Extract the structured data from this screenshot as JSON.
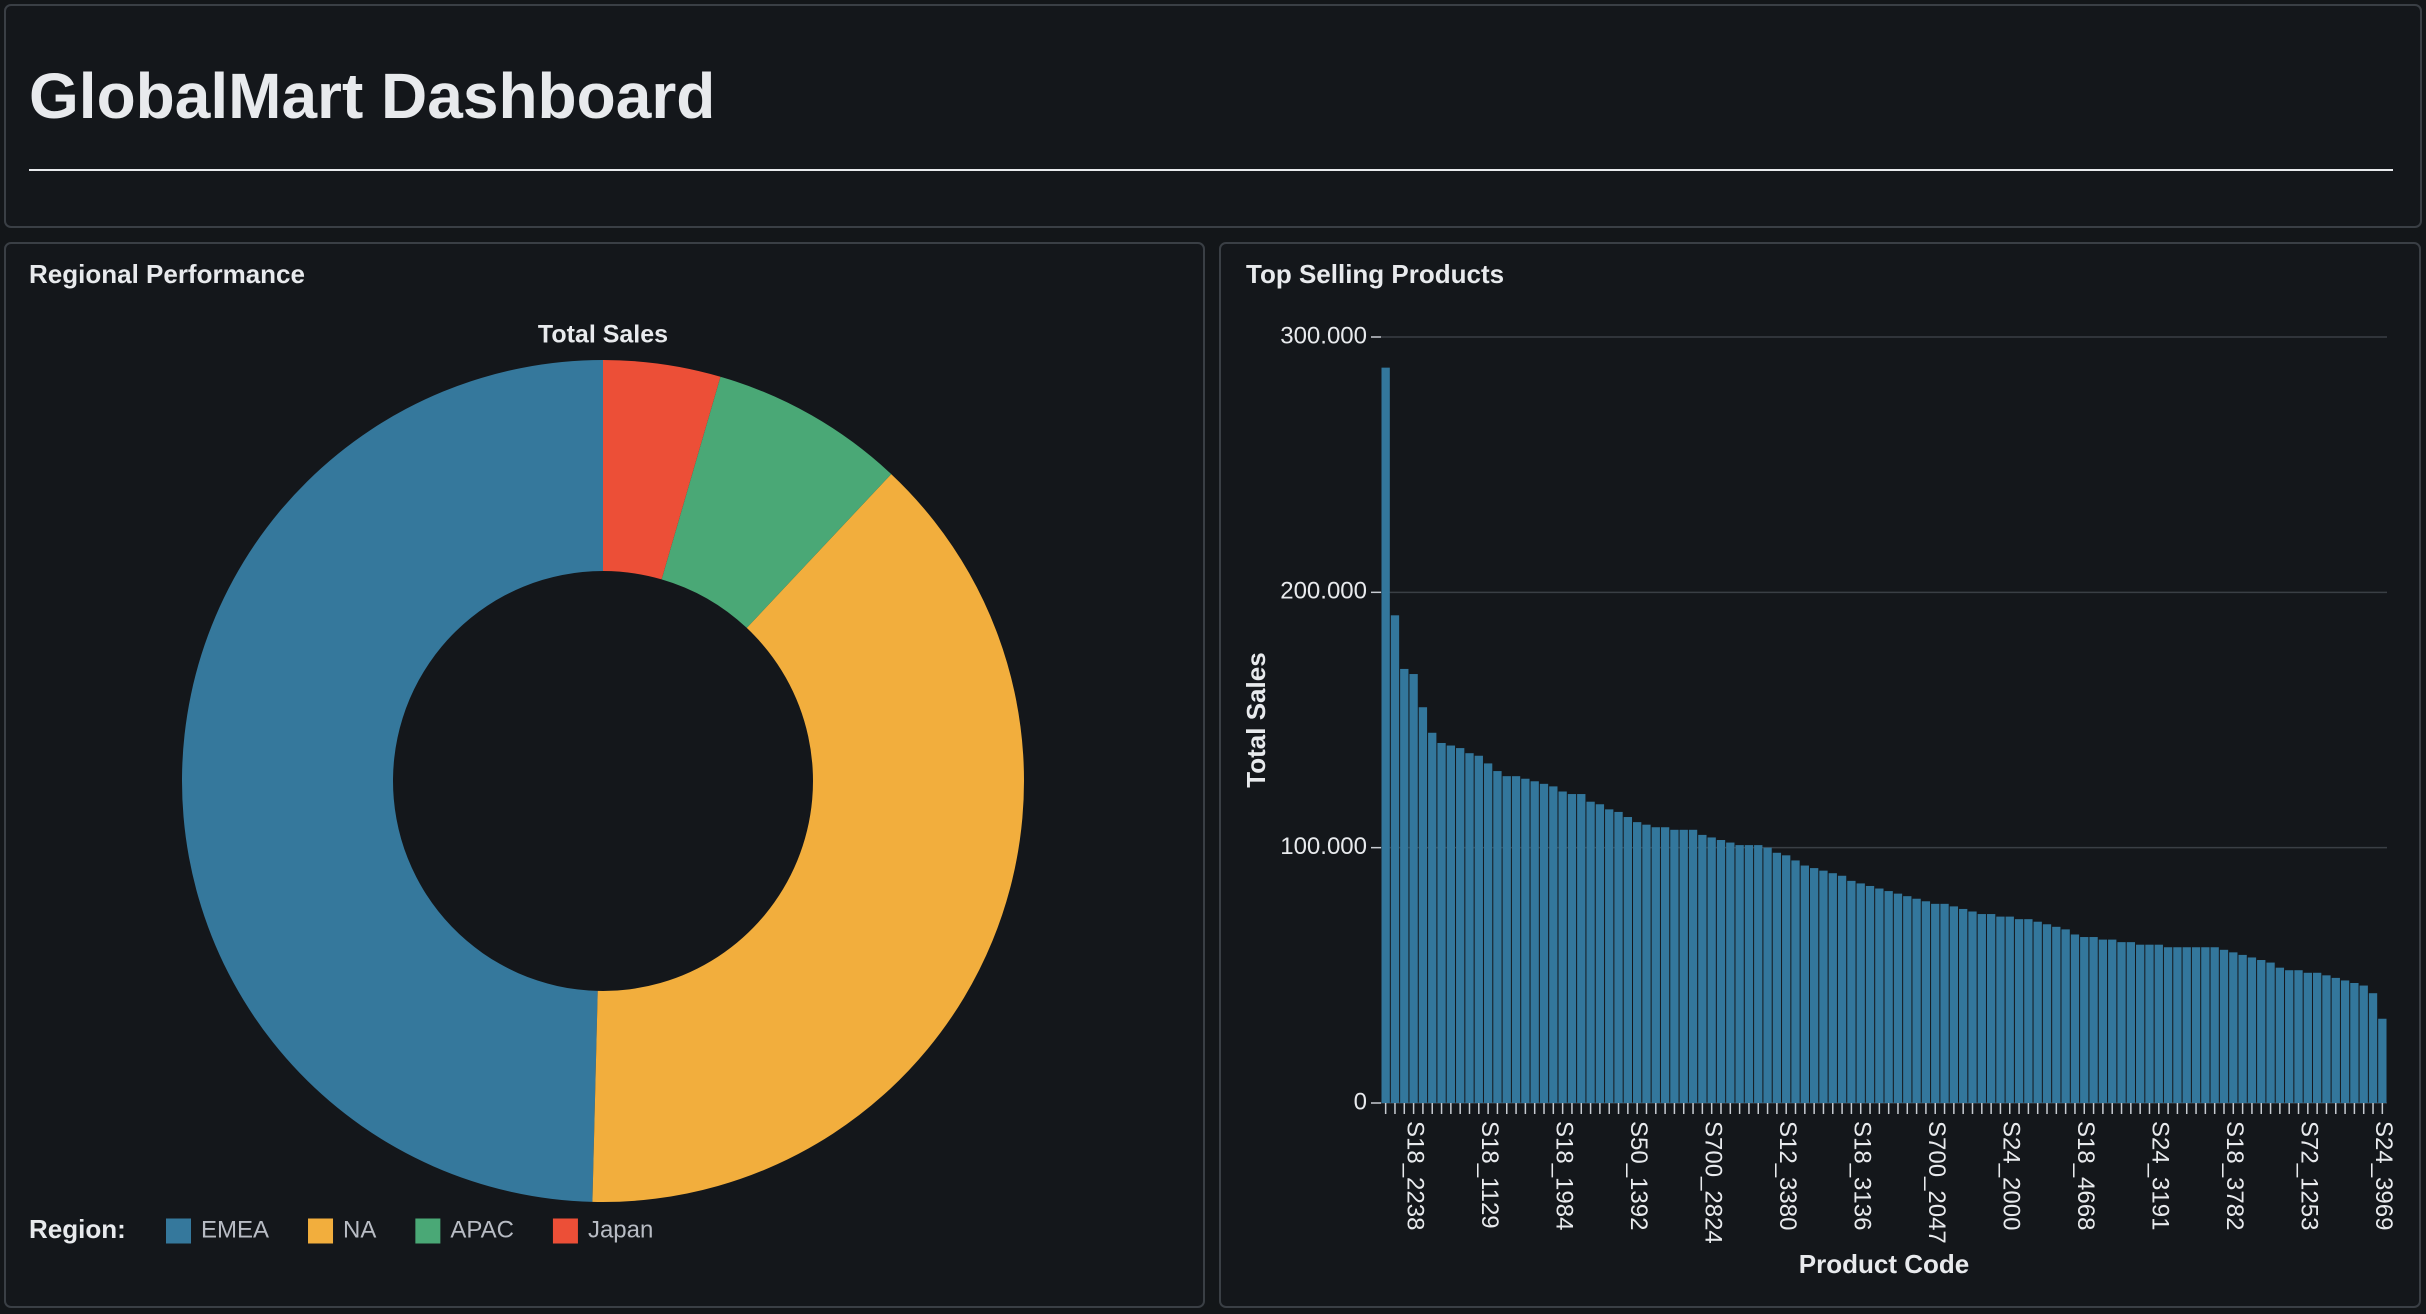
{
  "header": {
    "title": "GlobalMart Dashboard"
  },
  "chart_data": [
    {
      "type": "pie",
      "panel_title": "Regional Performance",
      "title": "Total Sales",
      "legend_title": "Region:",
      "legend": "bottom-left",
      "categories": [
        "EMEA",
        "NA",
        "APAC",
        "Japan"
      ],
      "values": [
        49.6,
        38.4,
        7.5,
        4.5
      ],
      "colors": [
        "#35789c",
        "#f2ae3d",
        "#4aa876",
        "#ec4f37"
      ]
    },
    {
      "type": "bar",
      "panel_title": "Top Selling Products",
      "xlabel": "Product Code",
      "ylabel": "Total Sales",
      "categories": [
        null,
        null,
        null,
        "S18_2238",
        null,
        null,
        null,
        null,
        null,
        null,
        null,
        "S18_1129",
        null,
        null,
        null,
        null,
        null,
        null,
        null,
        "S18_1984",
        null,
        null,
        null,
        null,
        null,
        null,
        null,
        "S50_1392",
        null,
        null,
        null,
        null,
        null,
        null,
        null,
        "S700_2824",
        null,
        null,
        null,
        null,
        null,
        null,
        null,
        "S12_3380",
        null,
        null,
        null,
        null,
        null,
        null,
        null,
        "S18_3136",
        null,
        null,
        null,
        null,
        null,
        null,
        null,
        "S700_2047",
        null,
        null,
        null,
        null,
        null,
        null,
        null,
        "S24_2000",
        null,
        null,
        null,
        null,
        null,
        null,
        null,
        "S18_4668",
        null,
        null,
        null,
        null,
        null,
        null,
        null,
        "S24_3191",
        null,
        null,
        null,
        null,
        null,
        null,
        null,
        "S18_3782",
        null,
        null,
        null,
        null,
        null,
        null,
        null,
        "S72_1253",
        null,
        null,
        null,
        null,
        null,
        null,
        null,
        "S24_3969"
      ],
      "values": [
        288000,
        191000,
        170000,
        168000,
        155000,
        145000,
        141000,
        140000,
        139000,
        137000,
        136000,
        133000,
        130000,
        128000,
        128000,
        127000,
        126000,
        125000,
        124000,
        122000,
        121000,
        121000,
        118000,
        117000,
        115000,
        114000,
        112000,
        110000,
        109000,
        108000,
        108000,
        107000,
        107000,
        107000,
        105000,
        104000,
        103000,
        102000,
        101000,
        101000,
        101000,
        100000,
        98000,
        97000,
        95000,
        93000,
        92000,
        91000,
        90000,
        89000,
        87000,
        86000,
        85000,
        84000,
        83000,
        82000,
        81000,
        80000,
        79000,
        78000,
        78000,
        77000,
        76000,
        75000,
        74000,
        74000,
        73000,
        73000,
        72000,
        72000,
        71000,
        70000,
        69000,
        68000,
        66000,
        65000,
        65000,
        64000,
        64000,
        63000,
        63000,
        62000,
        62000,
        62000,
        61000,
        61000,
        61000,
        61000,
        61000,
        61000,
        60000,
        59000,
        58000,
        57000,
        56000,
        55000,
        53000,
        52000,
        52000,
        51000,
        51000,
        50000,
        49000,
        48000,
        47000,
        46000,
        43000,
        33000
      ],
      "color": "#33779c",
      "ylim": [
        0,
        300000
      ],
      "yticks": [
        0,
        {
          "value": 100000,
          "label": "100.000"
        },
        {
          "value": 200000,
          "label": "200.000"
        },
        {
          "value": 300000,
          "label": "300.000"
        }
      ],
      "grid": true
    }
  ]
}
